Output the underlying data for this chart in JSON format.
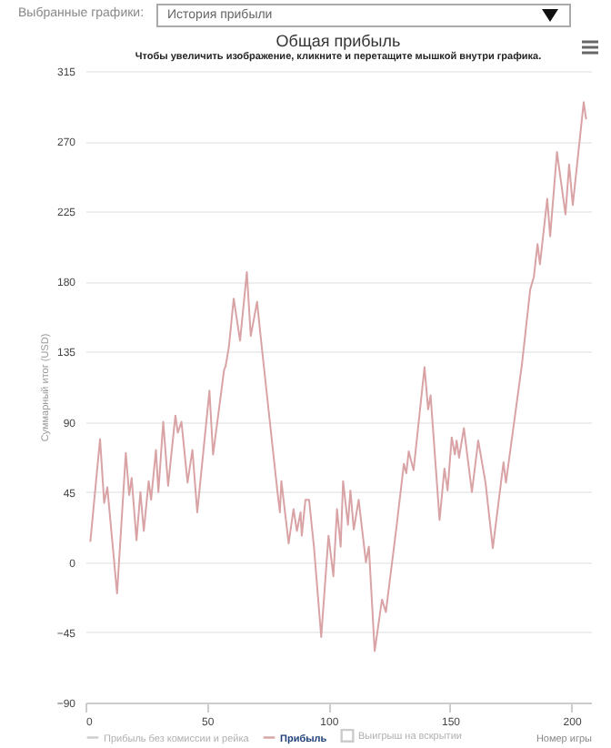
{
  "chart_data": {
    "type": "line",
    "title": "Общая прибыль",
    "subtitle": "Чтобы увеличить изображение, кликните и перетащите мышкой внутри графика.",
    "xlabel": "Номер игры",
    "ylabel": "Суммарный итог (USD)",
    "annotations": [
      "Выбранные графики:",
      "История прибыли"
    ],
    "xlim": [
      0,
      208
    ],
    "xticks": [
      0,
      50,
      100,
      150,
      200
    ],
    "ylim": [
      -90,
      315
    ],
    "yticks": [
      -90,
      -45,
      0,
      45,
      90,
      135,
      180,
      225,
      270,
      315
    ],
    "grid": "y",
    "legend": "bottom",
    "series": [
      {
        "name": "Прибыль без комиссии и рейка",
        "color": "#cccccc"
      },
      {
        "name": "Прибыль",
        "color": "#d9a3a6",
        "x": [
          2,
          6,
          7.7,
          9,
          13,
          16.6,
          18,
          19,
          21,
          22.6,
          24,
          26,
          27,
          29,
          30,
          32,
          34,
          37,
          38,
          39.5,
          42,
          44,
          46,
          51,
          52.5,
          57,
          57.7,
          59,
          61,
          63.6,
          66.4,
          68,
          70.6,
          72.6,
          79,
          80,
          80.6,
          83.6,
          85.6,
          87,
          88.5,
          89,
          90.5,
          92,
          94,
          97,
          100,
          102,
          103.5,
          105,
          106,
          108,
          109,
          110.4,
          112.4,
          115.4,
          116.6,
          119,
          122,
          123.6,
          128,
          131,
          132,
          133,
          135,
          139.5,
          141,
          142,
          145.7,
          147.7,
          149,
          150.7,
          152,
          152.7,
          153.7,
          155.7,
          159,
          161.6,
          164.6,
          167.6,
          172,
          173,
          179.6,
          183,
          184.5,
          186,
          187,
          190,
          191.2,
          194,
          197.5,
          199,
          200.5,
          205,
          206
        ],
        "values": [
          13,
          79,
          38,
          48,
          -20,
          70,
          43,
          54,
          14,
          45,
          20,
          52,
          40,
          72,
          45,
          90,
          49,
          94,
          83,
          90,
          51,
          72,
          32,
          110,
          69,
          123,
          126,
          138,
          169,
          142,
          186,
          145,
          167,
          137,
          45,
          32,
          52,
          12,
          34,
          20,
          32,
          17,
          40,
          40,
          10,
          -48,
          17,
          -9,
          34,
          10,
          52,
          24,
          46,
          21,
          40,
          0,
          10,
          -57,
          -24,
          -32,
          23,
          63,
          57,
          71,
          59,
          125,
          98,
          107,
          27,
          60,
          46,
          80,
          69,
          78,
          67,
          86,
          45,
          78,
          51,
          9,
          64,
          51,
          127,
          175,
          183,
          204,
          191,
          233,
          209,
          263,
          223,
          255,
          229,
          295,
          284
        ]
      },
      {
        "name": "Выигрыш на вскрытии",
        "type": "area",
        "color": "#cccccc"
      }
    ]
  }
}
